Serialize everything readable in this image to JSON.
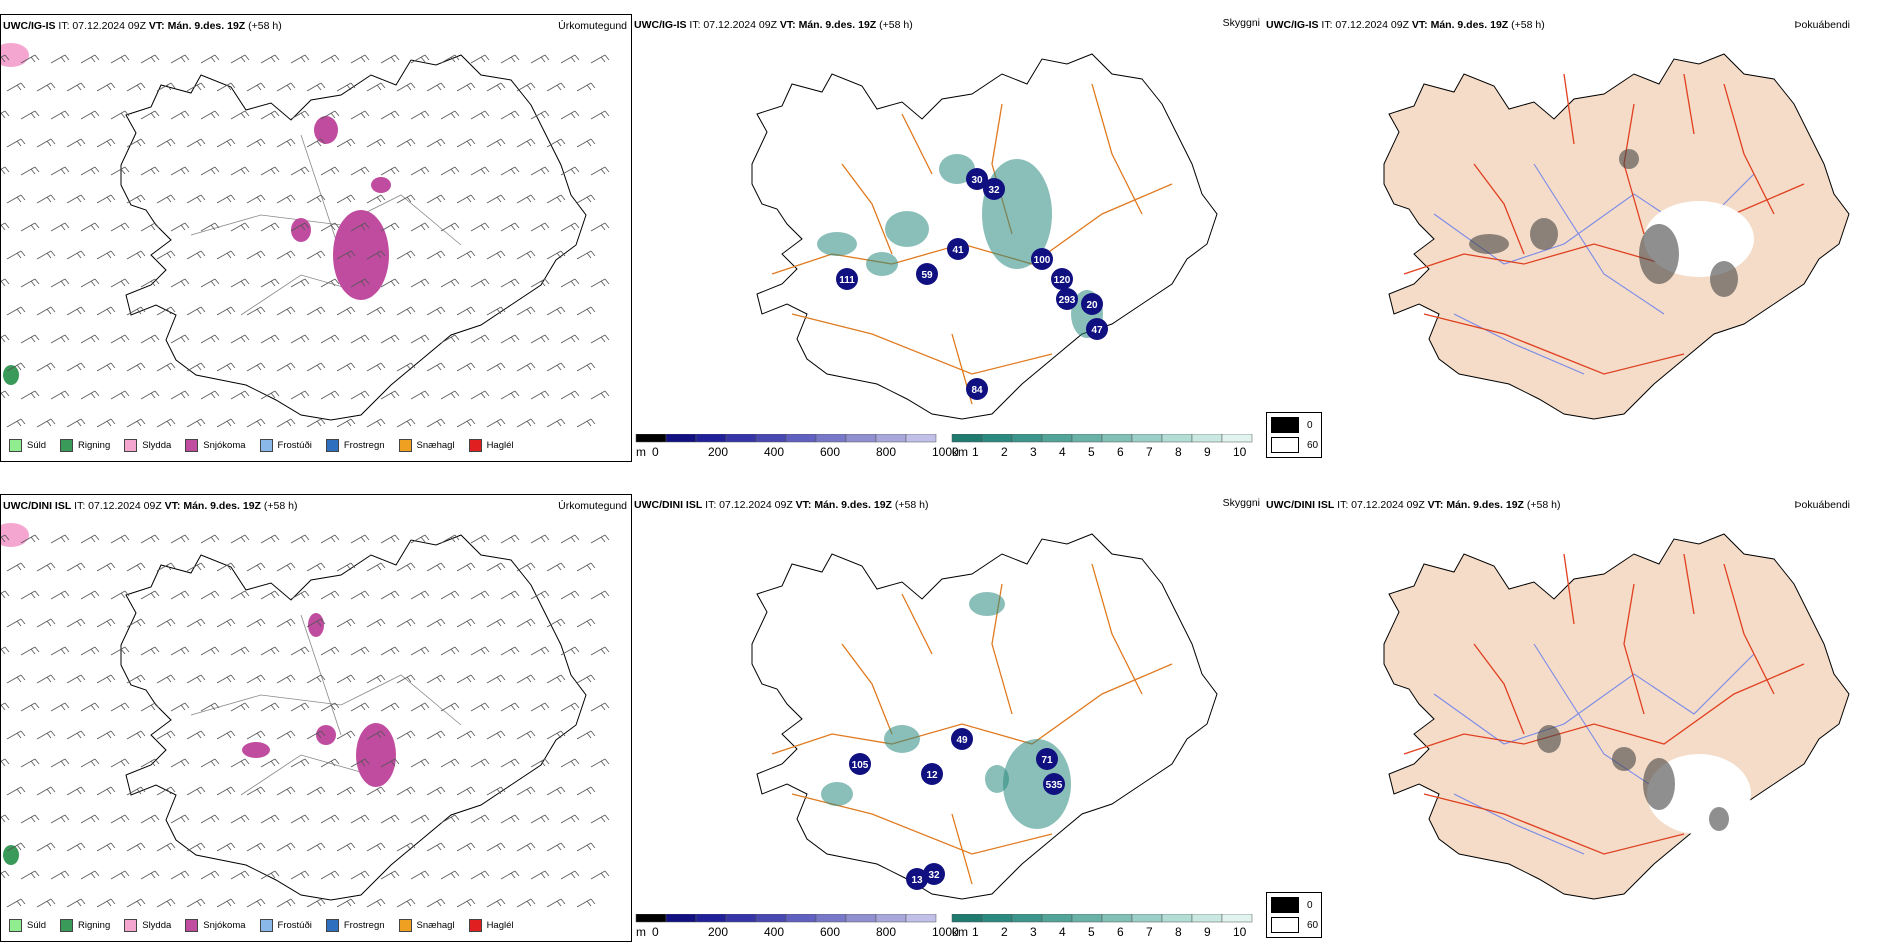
{
  "rows": [
    {
      "model": "UWC/IG-IS",
      "it_label": "IT: 07.12.2024 09Z",
      "vt_label": "VT: Mán. 9.des. 19Z",
      "lead": "(+58 h)",
      "precip_title": "Úrkomutegund",
      "cloud_title": "Skyggni",
      "fog_title": "Þokuábendi",
      "cloud_labels": [
        "30",
        "32",
        "41",
        "59",
        "111",
        "100",
        "120",
        "293",
        "20",
        "47",
        "84"
      ]
    },
    {
      "model": "UWC/DINI ISL",
      "it_label": "IT: 07.12.2024 09Z",
      "vt_label": "VT: Mán. 9.des. 19Z",
      "lead": "(+58 h)",
      "precip_title": "Úrkomutegund",
      "cloud_title": "Skyggni",
      "fog_title": "Þokuábendi",
      "cloud_labels": [
        "49",
        "105",
        "71",
        "535",
        "12",
        "13",
        "32"
      ]
    }
  ],
  "precip_legend": [
    {
      "label": "Súld",
      "color": "#90ee90"
    },
    {
      "label": "Rigning",
      "color": "#3a9a5a"
    },
    {
      "label": "Slydda",
      "color": "#f4a6d0"
    },
    {
      "label": "Snjókoma",
      "color": "#c04ca0"
    },
    {
      "label": "Frostúði",
      "color": "#8ab8e8"
    },
    {
      "label": "Frostregn",
      "color": "#2f6fbf"
    },
    {
      "label": "Snæhagl",
      "color": "#f0a020"
    },
    {
      "label": "Haglél",
      "color": "#e02020"
    }
  ],
  "ceiling_bar": {
    "unit": "m",
    "ticks": [
      "0",
      "200",
      "400",
      "600",
      "800",
      "1000"
    ]
  },
  "visibility_bar": {
    "unit": "km",
    "ticks": [
      "1",
      "2",
      "3",
      "4",
      "5",
      "6",
      "7",
      "8",
      "9",
      "10"
    ]
  },
  "alpha_legend": [
    "0",
    "60"
  ],
  "colors": {
    "roads": "#e07a20",
    "fog_land": "#f4dcc8",
    "fog_roads": "#e04020",
    "fog_rivers": "#7a8ae8",
    "ceiling_dark": "#101080",
    "visibility_teal": "#2a8a80"
  }
}
